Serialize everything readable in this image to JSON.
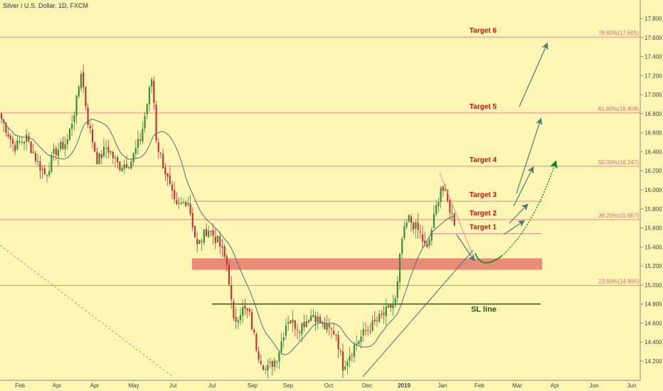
{
  "header": {
    "title": "Silver / U.S. Dollar, 1D, FXCM"
  },
  "colors": {
    "background": "#fdf5b4",
    "level_line": "#e8888c",
    "fib_label": "#e06a6a",
    "target_label": "#cc1010",
    "sl_line": "#1f5e1f",
    "support_zone": "#e77f6f",
    "ma_line": "#4a6f80",
    "arrow": "#4a7a78",
    "projection": "#0b8a1c",
    "candle_up": "#3d8a3d",
    "candle_down": "#b53a3a"
  },
  "chart_data": {
    "type": "candlestick",
    "y_range": [
      14.0,
      17.9
    ],
    "y_ticks": [
      "17.800",
      "17.600",
      "17.400",
      "17.200",
      "17.000",
      "16.800",
      "16.600",
      "16.400",
      "16.200",
      "16.000",
      "15.800",
      "15.600",
      "15.400",
      "15.200",
      "15.000",
      "14.800",
      "14.600",
      "14.400",
      "14.200"
    ],
    "x_ticks": [
      "Feb",
      "Apr",
      "Apr",
      "May",
      "Jul",
      "Jul",
      "Sep",
      "Sep",
      "Oct",
      "Dec",
      "2019",
      "Jan",
      "Feb",
      "Mar",
      "Apr",
      "Jun",
      "Jun"
    ],
    "levels": [
      {
        "price": 17.605,
        "label": "78.60%(17.605)",
        "target": "Target 6"
      },
      {
        "price": 16.808,
        "label": "61.80%(16.808)",
        "target": "Target 5"
      },
      {
        "price": 16.247,
        "label": "50.00%(16.247)",
        "target": "Target 4"
      },
      {
        "price": 15.88,
        "label": "",
        "target": "Target 3"
      },
      {
        "price": 15.687,
        "label": "38.20%(15.687)",
        "target": "Target 2"
      },
      {
        "price": 15.54,
        "label": "",
        "target": "Target 1"
      },
      {
        "price": 14.995,
        "label": "23.60%(14.995)",
        "target": ""
      }
    ],
    "support_zone": [
      15.16,
      15.28
    ],
    "sl_line": {
      "price": 14.8,
      "label": "SL line"
    },
    "price_anchors": [
      [
        0,
        16.75
      ],
      [
        18,
        16.45
      ],
      [
        35,
        16.55
      ],
      [
        50,
        16.3
      ],
      [
        62,
        16.15
      ],
      [
        75,
        16.4
      ],
      [
        92,
        16.5
      ],
      [
        105,
        16.9
      ],
      [
        112,
        17.25
      ],
      [
        122,
        16.7
      ],
      [
        135,
        16.3
      ],
      [
        148,
        16.45
      ],
      [
        165,
        16.25
      ],
      [
        182,
        16.3
      ],
      [
        196,
        16.55
      ],
      [
        212,
        17.2
      ],
      [
        218,
        16.5
      ],
      [
        232,
        16.15
      ],
      [
        245,
        15.8
      ],
      [
        262,
        15.9
      ],
      [
        275,
        15.4
      ],
      [
        290,
        15.6
      ],
      [
        305,
        15.45
      ],
      [
        318,
        15.2
      ],
      [
        326,
        14.6
      ],
      [
        338,
        14.75
      ],
      [
        348,
        14.7
      ],
      [
        360,
        14.3
      ],
      [
        372,
        14.1
      ],
      [
        388,
        14.25
      ],
      [
        402,
        14.65
      ],
      [
        418,
        14.55
      ],
      [
        438,
        14.7
      ],
      [
        455,
        14.55
      ],
      [
        470,
        14.5
      ],
      [
        480,
        14.15
      ],
      [
        495,
        14.35
      ],
      [
        510,
        14.5
      ],
      [
        525,
        14.6
      ],
      [
        545,
        14.75
      ],
      [
        555,
        14.85
      ],
      [
        562,
        15.45
      ],
      [
        572,
        15.7
      ],
      [
        588,
        15.55
      ],
      [
        598,
        15.35
      ],
      [
        608,
        15.7
      ],
      [
        618,
        16.05
      ],
      [
        628,
        15.85
      ],
      [
        640,
        15.6
      ]
    ]
  }
}
